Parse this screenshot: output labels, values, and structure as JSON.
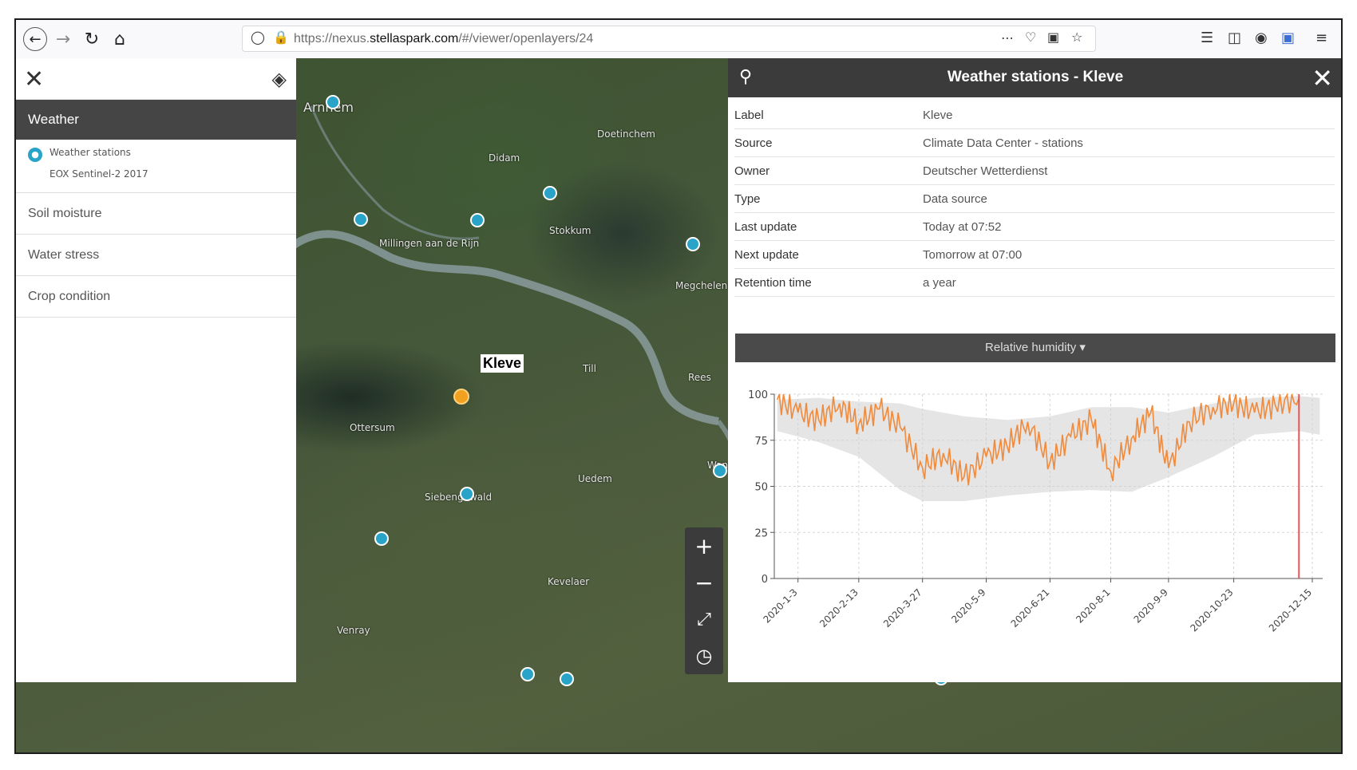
{
  "browser": {
    "url_prefix": "https://nexus.",
    "url_domain": "stellaspark.com",
    "url_path": "/#/viewer/openlayers/24"
  },
  "left_panel": {
    "active_group": "Weather",
    "sublayers": [
      "Weather stations",
      "EOX Sentinel-2 2017"
    ],
    "items": [
      "Soil moisture",
      "Water stress",
      "Crop condition"
    ]
  },
  "map": {
    "selected_label": "Kleve",
    "place_labels": [
      {
        "name": "Arnhem"
      },
      {
        "name": "Doetinchem"
      },
      {
        "name": "Didam"
      },
      {
        "name": "Millingen aan de Rijn"
      },
      {
        "name": "Stokkum"
      },
      {
        "name": "Megchelen"
      },
      {
        "name": "Till"
      },
      {
        "name": "Rees"
      },
      {
        "name": "Ottersum"
      },
      {
        "name": "Uedem"
      },
      {
        "name": "Siebengewald"
      },
      {
        "name": "Kevelaer"
      },
      {
        "name": "Venray"
      },
      {
        "name": "Wanssum"
      }
    ]
  },
  "right_panel": {
    "title": "Weather stations - Kleve",
    "info": [
      {
        "key": "Label",
        "value": "Kleve"
      },
      {
        "key": "Source",
        "value": "Climate Data Center - stations"
      },
      {
        "key": "Owner",
        "value": "Deutscher Wetterdienst"
      },
      {
        "key": "Type",
        "value": "Data source"
      },
      {
        "key": "Last update",
        "value": "Today at 07:52"
      },
      {
        "key": "Next update",
        "value": "Tomorrow at 07:00"
      },
      {
        "key": "Retention time",
        "value": "a year"
      }
    ],
    "variable_select": "Relative humidity ▾"
  },
  "chart_data": {
    "type": "line",
    "title": "",
    "xlabel": "",
    "ylabel": "",
    "ylim": [
      0,
      100
    ],
    "yticks": [
      0,
      25,
      50,
      75,
      100
    ],
    "xticks": [
      "2020-1-3",
      "2020-2-13",
      "2020-3-27",
      "2020-5-9",
      "2020-6-21",
      "2020-8-1",
      "2020-9-9",
      "2020-10-23",
      "2020-12-15"
    ],
    "grid": true,
    "line_color": "#f08a3c",
    "band_color": "#cfcfcf",
    "marker_color": "#e05555",
    "marker_x": "2020-12-06",
    "series": [
      {
        "x": [
          "2019-12-20",
          "2020-01-03",
          "2020-01-17",
          "2020-01-31",
          "2020-02-13",
          "2020-02-27",
          "2020-03-12",
          "2020-03-27",
          "2020-04-10",
          "2020-04-24",
          "2020-05-09",
          "2020-05-23",
          "2020-06-06",
          "2020-06-21",
          "2020-07-05",
          "2020-07-19",
          "2020-08-01",
          "2020-08-15",
          "2020-08-28",
          "2020-09-09",
          "2020-09-23",
          "2020-10-09",
          "2020-10-23",
          "2020-11-06",
          "2020-11-20",
          "2020-12-06"
        ],
        "values": [
          97,
          90,
          86,
          95,
          84,
          92,
          82,
          60,
          68,
          55,
          66,
          72,
          85,
          63,
          77,
          86,
          58,
          76,
          90,
          60,
          85,
          93,
          95,
          90,
          94,
          98
        ]
      }
    ],
    "band": {
      "x": [
        "2019-12-20",
        "2020-01-17",
        "2020-02-13",
        "2020-03-12",
        "2020-03-27",
        "2020-04-24",
        "2020-05-23",
        "2020-06-21",
        "2020-07-19",
        "2020-08-15",
        "2020-09-09",
        "2020-10-09",
        "2020-11-06",
        "2020-12-06",
        "2020-12-20"
      ],
      "upper": [
        97,
        98,
        96,
        95,
        92,
        88,
        86,
        88,
        93,
        93,
        90,
        95,
        98,
        99,
        98
      ],
      "lower": [
        80,
        74,
        66,
        48,
        42,
        42,
        45,
        47,
        48,
        47,
        55,
        66,
        78,
        80,
        78
      ]
    }
  }
}
